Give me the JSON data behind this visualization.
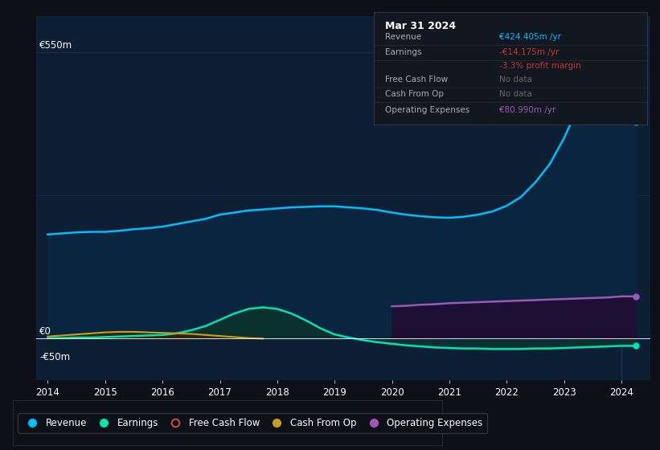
{
  "bg_color": "#0d1117",
  "plot_bg_color": "#0d1f35",
  "years": [
    2014.0,
    2014.25,
    2014.5,
    2014.75,
    2015.0,
    2015.25,
    2015.5,
    2015.75,
    2016.0,
    2016.25,
    2016.5,
    2016.75,
    2017.0,
    2017.25,
    2017.5,
    2017.75,
    2018.0,
    2018.25,
    2018.5,
    2018.75,
    2019.0,
    2019.25,
    2019.5,
    2019.75,
    2020.0,
    2020.25,
    2020.5,
    2020.75,
    2021.0,
    2021.25,
    2021.5,
    2021.75,
    2022.0,
    2022.25,
    2022.5,
    2022.75,
    2023.0,
    2023.25,
    2023.5,
    2023.75,
    2024.0,
    2024.25
  ],
  "revenue": [
    200,
    202,
    204,
    205,
    205,
    207,
    210,
    212,
    215,
    220,
    225,
    230,
    238,
    242,
    246,
    248,
    250,
    252,
    253,
    254,
    254,
    252,
    250,
    247,
    242,
    238,
    235,
    233,
    232,
    234,
    238,
    244,
    255,
    272,
    300,
    335,
    385,
    445,
    480,
    460,
    424,
    415
  ],
  "earnings": [
    1,
    1,
    2,
    2,
    3,
    4,
    5,
    6,
    7,
    10,
    16,
    24,
    36,
    48,
    57,
    60,
    57,
    48,
    35,
    20,
    8,
    2,
    -3,
    -7,
    -10,
    -13,
    -15,
    -17,
    -18,
    -19,
    -19,
    -20,
    -20,
    -20,
    -19,
    -19,
    -18,
    -17,
    -16,
    -15,
    -14,
    -14
  ],
  "cash_from_op": [
    4,
    6,
    8,
    10,
    12,
    13,
    13,
    12,
    11,
    10,
    9,
    7,
    5,
    3,
    1,
    0,
    null,
    null,
    null,
    null,
    null,
    null,
    null,
    null,
    null,
    null,
    null,
    null,
    null,
    null,
    null,
    null,
    null,
    null,
    null,
    null,
    null,
    null,
    null,
    null,
    null,
    null
  ],
  "op_expenses": [
    null,
    null,
    null,
    null,
    null,
    null,
    null,
    null,
    null,
    null,
    null,
    null,
    null,
    null,
    null,
    null,
    null,
    null,
    null,
    null,
    null,
    null,
    null,
    null,
    62,
    63,
    65,
    66,
    68,
    69,
    70,
    71,
    72,
    73,
    74,
    75,
    76,
    77,
    78,
    79,
    81,
    81
  ],
  "revenue_color": "#00bfff",
  "revenue_fill": "#0a2540",
  "earnings_color": "#00e5b0",
  "earnings_fill": "#0a3030",
  "cash_from_op_color": "#c8a020",
  "cash_from_op_fill": "#2c2510",
  "op_expenses_color": "#9b59b6",
  "op_expenses_fill": "#1e1035",
  "ylim": [
    -80,
    620
  ],
  "xlim": [
    2013.8,
    2024.5
  ],
  "y550_val": 550,
  "y0_val": 0,
  "yneg50_val": -50,
  "y550m_label": "€550m",
  "y0_label": "€0",
  "yneg50_label": "-€50m",
  "xtick_years": [
    2014,
    2015,
    2016,
    2017,
    2018,
    2019,
    2020,
    2021,
    2022,
    2023,
    2024
  ],
  "vline_x": 2024.0,
  "infobox_title": "Mar 31 2024",
  "infobox_rows": [
    {
      "label": "Revenue",
      "value": "€424.405m /yr",
      "value_color": "#00bfff"
    },
    {
      "label": "Earnings",
      "value": "-€14.175m /yr",
      "value_color": "#cc3333"
    },
    {
      "label": "",
      "value": "-3.3% profit margin",
      "value_color": "#cc3333"
    },
    {
      "label": "Free Cash Flow",
      "value": "No data",
      "value_color": "#666666"
    },
    {
      "label": "Cash From Op",
      "value": "No data",
      "value_color": "#666666"
    },
    {
      "label": "Operating Expenses",
      "value": "€80.990m /yr",
      "value_color": "#9b59b6"
    }
  ],
  "legend": [
    {
      "label": "Revenue",
      "color": "#00bfff",
      "filled": true
    },
    {
      "label": "Earnings",
      "color": "#00e5b0",
      "filled": true
    },
    {
      "label": "Free Cash Flow",
      "color": "#cc4444",
      "filled": false
    },
    {
      "label": "Cash From Op",
      "color": "#c8a020",
      "filled": true
    },
    {
      "label": "Operating Expenses",
      "color": "#9b59b6",
      "filled": true
    }
  ]
}
